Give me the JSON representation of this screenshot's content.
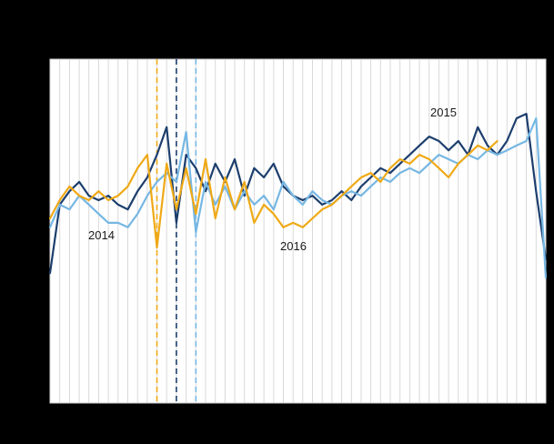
{
  "page": {
    "background_color": "#000000",
    "plot_background_color": "#ffffff"
  },
  "chart_data": {
    "type": "line",
    "x_unit": "week",
    "x": [
      1,
      2,
      3,
      4,
      5,
      6,
      7,
      8,
      9,
      10,
      11,
      12,
      13,
      14,
      15,
      16,
      17,
      18,
      19,
      20,
      21,
      22,
      23,
      24,
      25,
      26,
      27,
      28,
      29,
      30,
      31,
      32,
      33,
      34,
      35,
      36,
      37,
      38,
      39,
      40,
      41,
      42,
      43,
      44,
      45,
      46,
      47,
      48,
      49,
      50,
      51,
      52
    ],
    "ylim": [
      0,
      100
    ],
    "grid": "vertical-weekly",
    "grid_color": "#d9d9d9",
    "plot_border_color": "#c8c8c8",
    "legend_position": "inline-annotations",
    "series": [
      {
        "name": "2015",
        "color": "#1c3e6d",
        "values": [
          37.8,
          57.7,
          61.6,
          64.3,
          60.3,
          59.0,
          60.3,
          57.7,
          56.3,
          61.6,
          65.6,
          72.2,
          80.2,
          52.4,
          72.2,
          68.3,
          61.6,
          69.6,
          64.3,
          70.9,
          60.3,
          68.3,
          65.6,
          69.6,
          63.0,
          60.3,
          59.0,
          60.3,
          57.7,
          59.0,
          61.6,
          59.0,
          63.0,
          65.6,
          68.3,
          66.9,
          69.6,
          72.2,
          74.9,
          77.5,
          76.2,
          73.5,
          76.2,
          72.2,
          80.2,
          74.9,
          72.2,
          76.2,
          82.8,
          84.1,
          61.6,
          41.8
        ]
      },
      {
        "name": "2014",
        "color": "#76b7e3",
        "values": [
          51.1,
          57.7,
          56.3,
          60.3,
          57.7,
          55.0,
          52.4,
          52.4,
          51.1,
          55.0,
          60.3,
          64.3,
          66.9,
          64.3,
          78.8,
          49.7,
          64.3,
          57.7,
          63.0,
          56.3,
          61.6,
          57.7,
          60.3,
          56.3,
          64.3,
          60.3,
          57.7,
          61.6,
          59.0,
          57.7,
          60.3,
          61.6,
          60.3,
          63.0,
          65.6,
          64.3,
          66.9,
          68.3,
          66.9,
          69.6,
          72.2,
          70.9,
          69.6,
          72.2,
          70.9,
          73.5,
          72.2,
          73.5,
          74.9,
          76.2,
          82.8,
          36.5
        ]
      },
      {
        "name": "2016",
        "color": "#efa916",
        "values": [
          53.7,
          59.0,
          63.0,
          60.3,
          59.0,
          61.6,
          59.0,
          60.3,
          63.0,
          68.3,
          72.2,
          45.2,
          69.6,
          56.3,
          68.3,
          55.0,
          70.9,
          53.7,
          65.6,
          56.3,
          64.3,
          52.4,
          57.7,
          55.0,
          51.1,
          52.4,
          51.1,
          53.7,
          56.3,
          57.7,
          60.3,
          63.0,
          65.6,
          66.9,
          64.3,
          68.3,
          70.9,
          69.6,
          72.2,
          70.9,
          68.3,
          65.6,
          69.6,
          72.2,
          74.9,
          73.5,
          76.2,
          null,
          null,
          null,
          null,
          null
        ]
      }
    ],
    "reference_lines": [
      {
        "series": "2016",
        "week": 12,
        "color": "#efa916",
        "style": "dashed"
      },
      {
        "series": "2015",
        "week": 14,
        "color": "#1c3e6d",
        "style": "dashed"
      },
      {
        "series": "2014",
        "week": 16,
        "color": "#76b7e3",
        "style": "dashed"
      }
    ],
    "annotations": [
      {
        "text": "2014",
        "series": "2014"
      },
      {
        "text": "2016",
        "series": "2016"
      },
      {
        "text": "2015",
        "series": "2015"
      }
    ]
  }
}
